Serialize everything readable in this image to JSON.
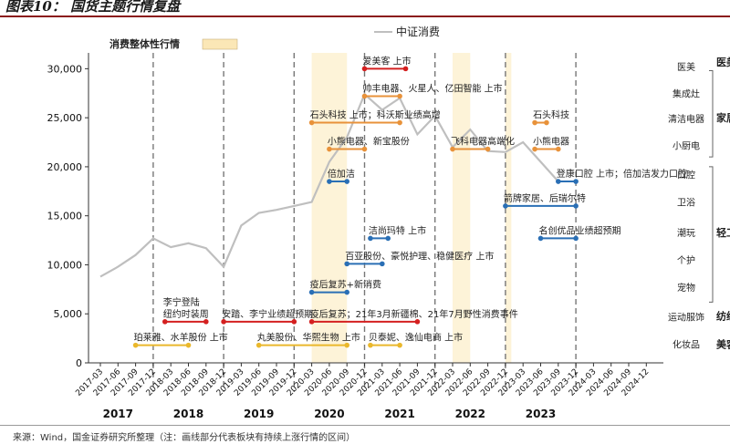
{
  "header": {
    "title": "图表10： 国货主题行情复盘"
  },
  "footer": {
    "source_note": "来源：Wind，国金证券研究所整理（注：画线部分代表板块有持续上涨行情的区间）"
  },
  "colors": {
    "accent": "#8b1a1a",
    "index_line": "#bfbfbf",
    "shade": "#fdf3d8",
    "shade_legend": "#fbe7b6",
    "red": "#d42020",
    "orange": "#e8923a",
    "blue": "#2a6fb5",
    "yellow": "#eab82c",
    "grid": "#999999",
    "year_sep": "#777777"
  },
  "chart_data": {
    "type": "line",
    "series": [
      {
        "name": "中证消费",
        "points": [
          [
            "2017-03",
            8800
          ],
          [
            "2017-06",
            9800
          ],
          [
            "2017-09",
            11000
          ],
          [
            "2017-12",
            12700
          ],
          [
            "2018-03",
            11800
          ],
          [
            "2018-06",
            12200
          ],
          [
            "2018-09",
            11700
          ],
          [
            "2018-12",
            9800
          ],
          [
            "2019-03",
            14000
          ],
          [
            "2019-06",
            15300
          ],
          [
            "2019-09",
            15600
          ],
          [
            "2019-12",
            16000
          ],
          [
            "2020-03",
            16400
          ],
          [
            "2020-06",
            20500
          ],
          [
            "2020-09",
            23000
          ],
          [
            "2020-12",
            27400
          ],
          [
            "2021-03",
            25800
          ],
          [
            "2021-06",
            27000
          ],
          [
            "2021-09",
            23300
          ],
          [
            "2021-12",
            25200
          ],
          [
            "2022-03",
            22000
          ],
          [
            "2022-06",
            23800
          ],
          [
            "2022-09",
            21600
          ],
          [
            "2022-12",
            21500
          ],
          [
            "2023-03",
            22500
          ],
          [
            "2023-06",
            20500
          ],
          [
            "2023-09",
            18500
          ]
        ]
      }
    ],
    "x_ticks": [
      "2017-03",
      "2017-06",
      "2017-09",
      "2017-12",
      "2018-03",
      "2018-06",
      "2018-09",
      "2018-12",
      "2019-03",
      "2019-06",
      "2019-09",
      "2019-12",
      "2020-03",
      "2020-06",
      "2020-09",
      "2020-12",
      "2021-03",
      "2021-06",
      "2021-09",
      "2021-12",
      "2022-03",
      "2022-06",
      "2022-09",
      "2022-12",
      "2023-03",
      "2023-06",
      "2023-09",
      "2023-12",
      "2024-03",
      "2024-06",
      "2024-09",
      "2024-12"
    ],
    "years": [
      "2017",
      "2018",
      "2019",
      "2020",
      "2021",
      "2022",
      "2023"
    ],
    "year_separators": [
      "2017-12",
      "2018-12",
      "2019-12",
      "2020-12",
      "2021-12",
      "2022-12",
      "2023-12"
    ],
    "y_ticks": [
      0,
      5000,
      10000,
      15000,
      20000,
      25000,
      30000
    ],
    "y_tick_labels": [
      "0",
      "5,000",
      "10,000",
      "15,000",
      "20,000",
      "25,000",
      "30,000"
    ],
    "ylim": [
      0,
      30500
    ],
    "legend": {
      "line_label": "中证消费",
      "shade_label": "消费整体性行情"
    },
    "shaded_periods": [
      [
        "2020-03",
        "2020-09"
      ],
      [
        "2022-03",
        "2022-06"
      ],
      [
        "2022-12",
        "2023-01"
      ]
    ],
    "events": [
      {
        "text": "爱美客 上市",
        "color": "red",
        "start": "2020-12",
        "end": "2021-07",
        "y": 30000
      },
      {
        "text": "帅丰电器、火星人、亿田智能 上市",
        "color": "orange",
        "start": "2020-12",
        "end": "2021-06",
        "y": 27200
      },
      {
        "text": "石头科技 上市；科沃斯业绩高增",
        "color": "orange",
        "start": "2020-03",
        "end": "2021-06",
        "y": 24500
      },
      {
        "text": "石头科技",
        "color": "orange",
        "start": "2023-05",
        "end": "2023-07",
        "y": 24500
      },
      {
        "text": "小熊电器、新宝股份",
        "color": "orange",
        "start": "2020-06",
        "end": "2020-12",
        "y": 21800
      },
      {
        "text": "飞科电器高端化",
        "color": "orange",
        "start": "2022-03",
        "end": "2022-09",
        "y": 21800
      },
      {
        "text": "小熊电器",
        "color": "orange",
        "start": "2023-05",
        "end": "2023-09",
        "y": 21800
      },
      {
        "text": "倍加洁",
        "color": "blue",
        "start": "2020-06",
        "end": "2020-09",
        "y": 18500
      },
      {
        "text": "登康口腔 上市；倍加洁发力口腔",
        "color": "blue",
        "start": "2023-09",
        "end": "2023-12",
        "y": 18500
      },
      {
        "text": "箭牌家居、后瑞尔特",
        "color": "blue",
        "start": "2022-12",
        "end": "2023-12",
        "y": 16000
      },
      {
        "text": "洁尚玛特 上市",
        "color": "blue",
        "start": "2021-01",
        "end": "2021-04",
        "y": 12700
      },
      {
        "text": "名创优品业绩超预期",
        "color": "blue",
        "start": "2023-06",
        "end": "2023-12",
        "y": 12700
      },
      {
        "text": "百亚股份、豪悦护理、稳健医疗 上市",
        "color": "blue",
        "start": "2020-09",
        "end": "2021-03",
        "y": 10100
      },
      {
        "text": "疫后复苏+新消费",
        "color": "blue",
        "start": "2020-03",
        "end": "2020-09",
        "y": 7200
      },
      {
        "text": "李宁登陆\n纽约时装周",
        "color": "red",
        "start": "2018-02",
        "end": "2018-09",
        "y": 4200
      },
      {
        "text": "安踏、李宁业绩超预期",
        "color": "red",
        "start": "2018-12",
        "end": "2019-12",
        "y": 4200
      },
      {
        "text": "疫后复苏；21年3月新疆棉、21年7月野性消费事件",
        "color": "red",
        "start": "2020-03",
        "end": "2021-09",
        "y": 4200
      },
      {
        "text": "珀莱雅、水羊股份 上市",
        "color": "yellow",
        "start": "2017-09",
        "end": "2018-06",
        "y": 1800
      },
      {
        "text": "丸美股份、华熙生物 上市",
        "color": "yellow",
        "start": "2019-06",
        "end": "2020-09",
        "y": 1800
      },
      {
        "text": "贝泰妮、逸仙电商 上市",
        "color": "yellow",
        "start": "2021-01",
        "end": "2021-06",
        "y": 1800
      }
    ],
    "right_labels": [
      {
        "text": "医美",
        "y": 30200
      },
      {
        "text": "集成灶",
        "y": 27500
      },
      {
        "text": "清洁电器",
        "y": 24900
      },
      {
        "text": "小厨电",
        "y": 22200
      },
      {
        "text": "口腔",
        "y": 19200
      },
      {
        "text": "卫浴",
        "y": 16400
      },
      {
        "text": "潮玩",
        "y": 13300
      },
      {
        "text": "个护",
        "y": 10500
      },
      {
        "text": "宠物",
        "y": 7700
      },
      {
        "text": "运动服饰",
        "y": 4700
      },
      {
        "text": "化妆品",
        "y": 1900
      }
    ],
    "category_groups": [
      {
        "text": "医美",
        "y": 30700
      },
      {
        "text": "家居",
        "y": 25000
      },
      {
        "text": "轻工",
        "y": 13300
      },
      {
        "text": "纺织",
        "y": 4800
      },
      {
        "text": "美容",
        "y": 1900
      }
    ],
    "brackets": [
      [
        21000,
        29800
      ],
      [
        6200,
        20000
      ]
    ]
  }
}
